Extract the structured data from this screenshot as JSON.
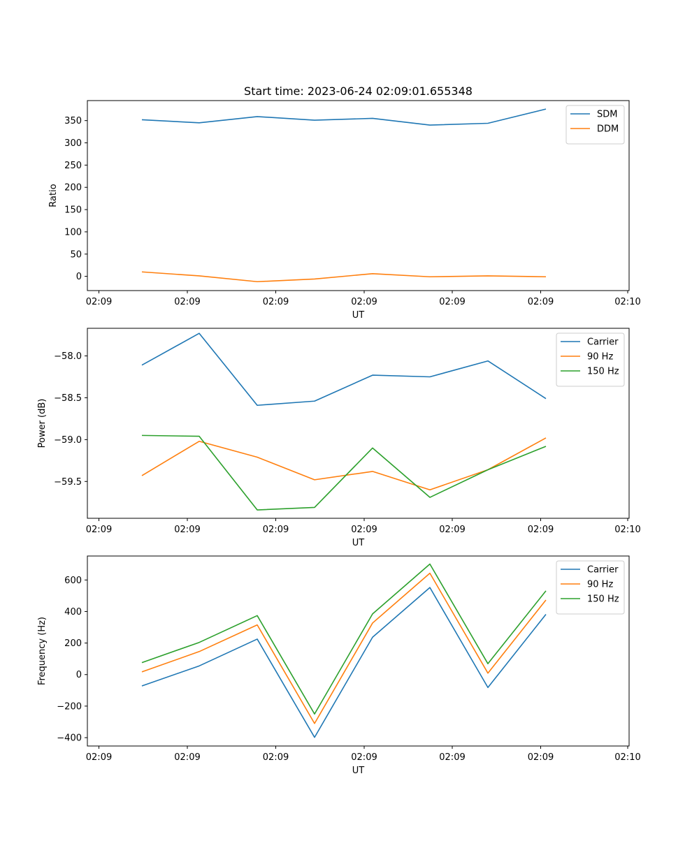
{
  "figure_title": "Start time: 2023-06-24 02:09:01.655348",
  "colors": {
    "blue": "#1f77b4",
    "orange": "#ff7f0e",
    "green": "#2ca02c"
  },
  "chart_data": [
    {
      "type": "line",
      "xlabel": "UT",
      "ylabel": "Ratio",
      "x_tick_labels": [
        "02:09",
        "02:09",
        "02:09",
        "02:09",
        "02:09",
        "02:09",
        "02:10"
      ],
      "x_sample_index": [
        0,
        1,
        2,
        3,
        4,
        5,
        6,
        7
      ],
      "ylim": [
        -32,
        395
      ],
      "y_ticks": [
        0,
        50,
        100,
        150,
        200,
        250,
        300,
        350
      ],
      "legend_position": "top-right",
      "series": [
        {
          "name": "SDM",
          "color": "#1f77b4",
          "values": [
            352,
            345,
            359,
            351,
            355,
            340,
            344,
            376
          ]
        },
        {
          "name": "DDM",
          "color": "#ff7f0e",
          "values": [
            10,
            1,
            -12,
            -6,
            6,
            -1,
            1,
            -1
          ]
        }
      ]
    },
    {
      "type": "line",
      "xlabel": "UT",
      "ylabel": "Power (dB)",
      "x_tick_labels": [
        "02:09",
        "02:09",
        "02:09",
        "02:09",
        "02:09",
        "02:09",
        "02:10"
      ],
      "x_sample_index": [
        0,
        1,
        2,
        3,
        4,
        5,
        6,
        7
      ],
      "ylim": [
        -59.94,
        -57.67
      ],
      "y_ticks": [
        -59.5,
        -59.0,
        -58.5,
        -58.0
      ],
      "y_tick_labels": [
        "−59.5",
        "−59.0",
        "−58.5",
        "−58.0"
      ],
      "legend_position": "top-right",
      "series": [
        {
          "name": "Carrier",
          "color": "#1f77b4",
          "values": [
            -58.11,
            -57.73,
            -58.59,
            -58.54,
            -58.23,
            -58.25,
            -58.06,
            -58.51
          ]
        },
        {
          "name": "90 Hz",
          "color": "#ff7f0e",
          "values": [
            -59.43,
            -59.02,
            -59.21,
            -59.48,
            -59.38,
            -59.6,
            -59.36,
            -58.98
          ]
        },
        {
          "name": "150 Hz",
          "color": "#2ca02c",
          "values": [
            -58.95,
            -58.96,
            -59.84,
            -59.81,
            -59.1,
            -59.69,
            -59.36,
            -59.08
          ]
        }
      ]
    },
    {
      "type": "line",
      "xlabel": "UT",
      "ylabel": "Frequency (Hz)",
      "x_tick_labels": [
        "02:09",
        "02:09",
        "02:09",
        "02:09",
        "02:09",
        "02:09",
        "02:10"
      ],
      "x_sample_index": [
        0,
        1,
        2,
        3,
        4,
        5,
        6,
        7
      ],
      "ylim": [
        -453,
        752
      ],
      "y_ticks": [
        -400,
        -200,
        0,
        200,
        400,
        600
      ],
      "y_tick_labels": [
        "−400",
        "−200",
        "0",
        "200",
        "400",
        "600"
      ],
      "legend_position": "top-right",
      "series": [
        {
          "name": "Carrier",
          "color": "#1f77b4",
          "values": [
            -72,
            55,
            225,
            -398,
            237,
            552,
            -82,
            382
          ]
        },
        {
          "name": "90 Hz",
          "color": "#ff7f0e",
          "values": [
            17,
            146,
            315,
            -310,
            327,
            643,
            9,
            473
          ]
        },
        {
          "name": "150 Hz",
          "color": "#2ca02c",
          "values": [
            76,
            204,
            374,
            -250,
            385,
            701,
            69,
            531
          ]
        }
      ]
    }
  ]
}
